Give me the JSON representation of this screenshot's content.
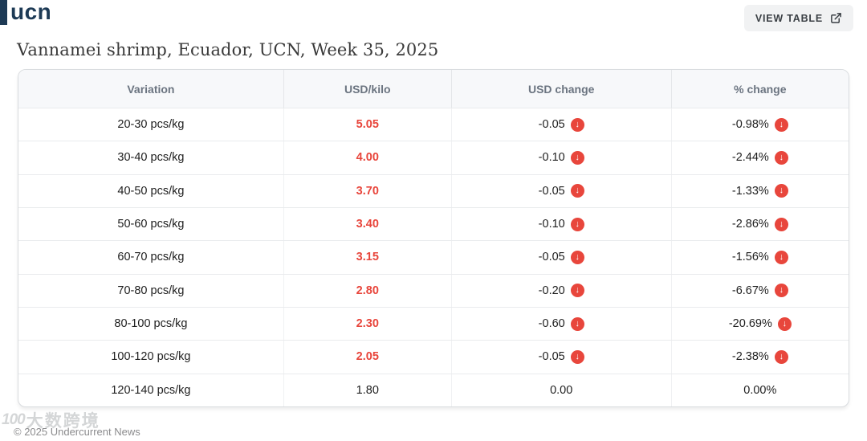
{
  "header": {
    "logo_text": "ucn",
    "view_table_label": "VIEW TABLE"
  },
  "title": "Vannamei shrimp, Ecuador, UCN, Week 35, 2025",
  "table": {
    "headers": [
      "Variation",
      "USD/kilo",
      "USD change",
      "% change"
    ],
    "rows": [
      {
        "variation": "20-30 pcs/kg",
        "usd_kilo": "5.05",
        "usd_kilo_highlight": true,
        "usd_change": "-0.05",
        "usd_change_direction": "down",
        "pct_change": "-0.98%",
        "pct_change_direction": "down"
      },
      {
        "variation": "30-40 pcs/kg",
        "usd_kilo": "4.00",
        "usd_kilo_highlight": true,
        "usd_change": "-0.10",
        "usd_change_direction": "down",
        "pct_change": "-2.44%",
        "pct_change_direction": "down"
      },
      {
        "variation": "40-50 pcs/kg",
        "usd_kilo": "3.70",
        "usd_kilo_highlight": true,
        "usd_change": "-0.05",
        "usd_change_direction": "down",
        "pct_change": "-1.33%",
        "pct_change_direction": "down"
      },
      {
        "variation": "50-60 pcs/kg",
        "usd_kilo": "3.40",
        "usd_kilo_highlight": true,
        "usd_change": "-0.10",
        "usd_change_direction": "down",
        "pct_change": "-2.86%",
        "pct_change_direction": "down"
      },
      {
        "variation": "60-70 pcs/kg",
        "usd_kilo": "3.15",
        "usd_kilo_highlight": true,
        "usd_change": "-0.05",
        "usd_change_direction": "down",
        "pct_change": "-1.56%",
        "pct_change_direction": "down"
      },
      {
        "variation": "70-80 pcs/kg",
        "usd_kilo": "2.80",
        "usd_kilo_highlight": true,
        "usd_change": "-0.20",
        "usd_change_direction": "down",
        "pct_change": "-6.67%",
        "pct_change_direction": "down"
      },
      {
        "variation": "80-100 pcs/kg",
        "usd_kilo": "2.30",
        "usd_kilo_highlight": true,
        "usd_change": "-0.60",
        "usd_change_direction": "down",
        "pct_change": "-20.69%",
        "pct_change_direction": "down"
      },
      {
        "variation": "100-120 pcs/kg",
        "usd_kilo": "2.05",
        "usd_kilo_highlight": true,
        "usd_change": "-0.05",
        "usd_change_direction": "down",
        "pct_change": "-2.38%",
        "pct_change_direction": "down"
      },
      {
        "variation": "120-140 pcs/kg",
        "usd_kilo": "1.80",
        "usd_kilo_highlight": false,
        "usd_change": "0.00",
        "usd_change_direction": "none",
        "pct_change": "0.00%",
        "pct_change_direction": "none"
      }
    ]
  },
  "icons": {
    "down_arrow_glyph": "↓",
    "external_link_icon": "external-link"
  },
  "colors": {
    "accent_red": "#e8463c",
    "brand_navy": "#1d3a55",
    "header_text_gray": "#6b7480"
  },
  "footer": {
    "watermark_logo": "100",
    "watermark_text": "大数跨境",
    "copyright": "© 2025 Undercurrent News"
  }
}
